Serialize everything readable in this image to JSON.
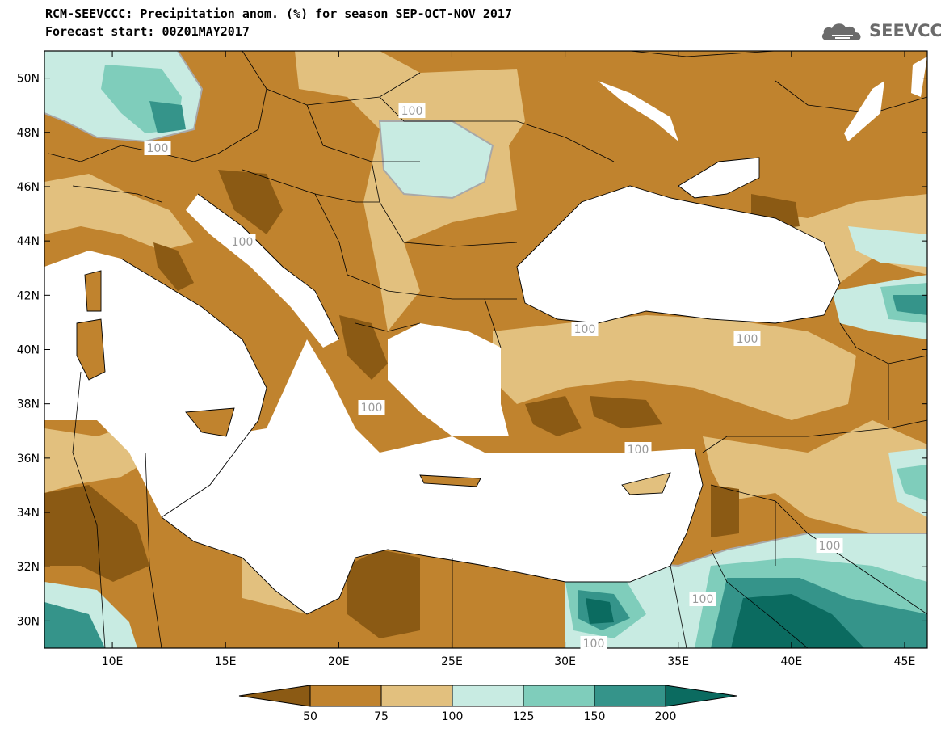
{
  "header": {
    "title_line1": "RCM-SEEVCCC: Precipitation anom. (%) for season SEP-OCT-NOV 2017",
    "title_line2": "Forecast start: 00Z01MAY2017",
    "logo_text": "SEEVCCC",
    "logo_icon": "cloud-logo-icon"
  },
  "map": {
    "lon_range": [
      7,
      46
    ],
    "lat_range": [
      29,
      51
    ],
    "lat_ticks": [
      "50N",
      "48N",
      "46N",
      "44N",
      "42N",
      "40N",
      "38N",
      "36N",
      "34N",
      "32N",
      "30N"
    ],
    "lon_ticks": [
      "10E",
      "15E",
      "20E",
      "25E",
      "30E",
      "35E",
      "40E",
      "45E"
    ],
    "contour_labels": [
      "100",
      "100",
      "100",
      "100",
      "100",
      "100",
      "100",
      "100",
      "100",
      "100"
    ]
  },
  "colorbar": {
    "levels": [
      "50",
      "75",
      "100",
      "125",
      "150",
      "200"
    ],
    "colors": [
      "#8b5a14",
      "#c0832e",
      "#e2c07e",
      "#c8ebe2",
      "#7fcdbb",
      "#35948a",
      "#0b6b60"
    ]
  }
}
